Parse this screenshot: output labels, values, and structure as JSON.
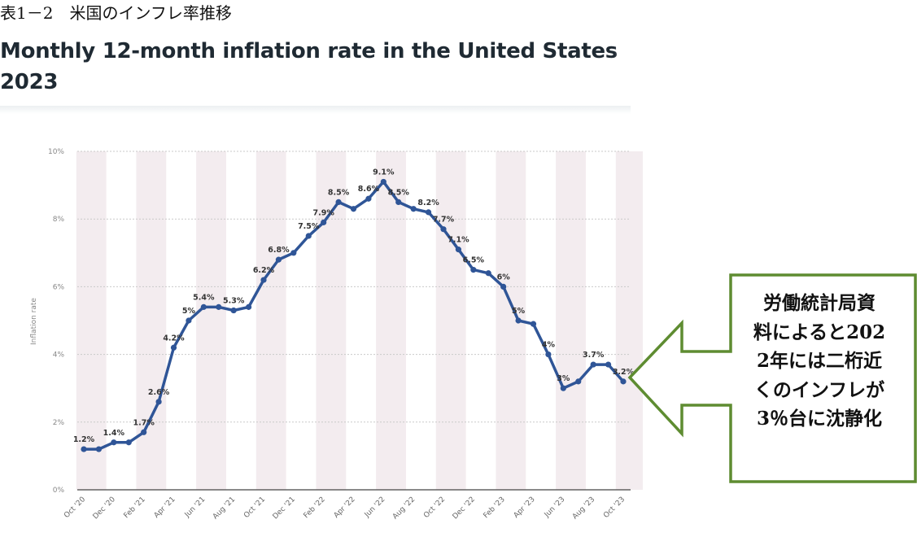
{
  "header": {
    "table_label": "表1－2　米国のインフレ率推移",
    "chart_title_line1": "Monthly 12-month inflation rate in the United States",
    "chart_title_line2": "2023"
  },
  "callout": {
    "lines": [
      "労働統計局資",
      "料によると202",
      "2年には二桁近",
      "くのインフレが",
      "3％台に沈静化"
    ],
    "border_color": "#5e8c31"
  },
  "chart_data": {
    "type": "line",
    "title": "Monthly 12-month inflation rate in the United States 2023",
    "xlabel": "",
    "ylabel": "Inflation rate",
    "ylim": [
      0,
      10
    ],
    "yticks": [
      "0%",
      "2%",
      "4%",
      "6%",
      "8%",
      "10%"
    ],
    "x": [
      "Oct '20",
      "Nov '20",
      "Dec '20",
      "Jan '21",
      "Feb '21",
      "Mar '21",
      "Apr '21",
      "May '21",
      "Jun '21",
      "Jul '21",
      "Aug '21",
      "Sep '21",
      "Oct '21",
      "Nov '21",
      "Dec '21",
      "Jan '22",
      "Feb '22",
      "Mar '22",
      "Apr '22",
      "May '22",
      "Jun '22",
      "Jul '22",
      "Aug '22",
      "Sep '22",
      "Oct '22",
      "Nov '22",
      "Dec '22",
      "Jan '23",
      "Feb '23",
      "Mar '23",
      "Apr '23",
      "May '23",
      "Jun '23",
      "Jul '23",
      "Aug '23",
      "Sep '23",
      "Oct '23"
    ],
    "xtick_labels": [
      "Oct '20",
      "Dec '20",
      "Feb '21",
      "Apr '21",
      "Jun '21",
      "Aug '21",
      "Oct '21",
      "Dec '21",
      "Feb '22",
      "Apr '22",
      "Jun '22",
      "Aug '22",
      "Oct '22",
      "Dec '22",
      "Feb '23",
      "Apr '23",
      "Jun '23",
      "Aug '23",
      "Oct '23"
    ],
    "series": [
      {
        "name": "Inflation rate",
        "values": [
          1.2,
          1.2,
          1.4,
          1.4,
          1.7,
          2.6,
          4.2,
          5.0,
          5.4,
          5.4,
          5.3,
          5.4,
          6.2,
          6.8,
          7.0,
          7.5,
          7.9,
          8.5,
          8.3,
          8.6,
          9.1,
          8.5,
          8.3,
          8.2,
          7.7,
          7.1,
          6.5,
          6.4,
          6.0,
          5.0,
          4.9,
          4.0,
          3.0,
          3.2,
          3.7,
          3.7,
          3.2
        ]
      }
    ],
    "data_labels": [
      {
        "index": 0,
        "text": "1.2%"
      },
      {
        "index": 2,
        "text": "1.4%"
      },
      {
        "index": 4,
        "text": "1.7%"
      },
      {
        "index": 5,
        "text": "2.6%"
      },
      {
        "index": 6,
        "text": "4.2%"
      },
      {
        "index": 7,
        "text": "5%"
      },
      {
        "index": 8,
        "text": "5.4%"
      },
      {
        "index": 10,
        "text": "5.3%"
      },
      {
        "index": 12,
        "text": "6.2%"
      },
      {
        "index": 13,
        "text": "6.8%"
      },
      {
        "index": 15,
        "text": "7.5%"
      },
      {
        "index": 16,
        "text": "7.9%"
      },
      {
        "index": 17,
        "text": "8.5%"
      },
      {
        "index": 19,
        "text": "8.6%"
      },
      {
        "index": 20,
        "text": "9.1%"
      },
      {
        "index": 21,
        "text": "8.5%"
      },
      {
        "index": 23,
        "text": "8.2%"
      },
      {
        "index": 24,
        "text": "7.7%"
      },
      {
        "index": 25,
        "text": "7.1%"
      },
      {
        "index": 26,
        "text": "6.5%"
      },
      {
        "index": 28,
        "text": "6%"
      },
      {
        "index": 29,
        "text": "5%"
      },
      {
        "index": 31,
        "text": "4%"
      },
      {
        "index": 32,
        "text": "3%"
      },
      {
        "index": 34,
        "text": "3.7%"
      },
      {
        "index": 36,
        "text": "3.2%"
      }
    ],
    "line_color": "#2f5597",
    "band_color": "#f3ecef",
    "grid": true
  }
}
